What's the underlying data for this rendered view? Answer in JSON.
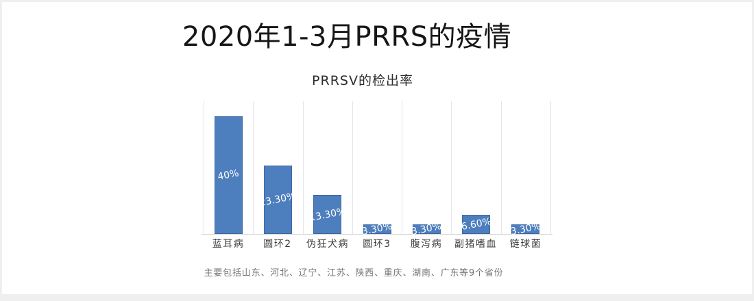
{
  "slide": {
    "title": "2020年1-3月PRRS的疫情",
    "footnote": "主要包括山东、河北、辽宁、江苏、陕西、重庆、湖南、广东等9个省份"
  },
  "chart_data": {
    "type": "bar",
    "title": "PRRSV的检出率",
    "categories": [
      "蓝耳病",
      "圆环2",
      "伪狂犬病",
      "圆环3",
      "腹泻病",
      "副猪嗜血",
      "链球菌"
    ],
    "values": [
      40,
      23.3,
      13.3,
      3.3,
      3.3,
      6.6,
      3.3
    ],
    "value_labels": [
      "40%",
      "23.30%",
      "13.30%",
      "3.30%",
      "3.30%",
      "6.60%",
      "3.30%"
    ],
    "xlabel": "",
    "ylabel": "",
    "ylim": [
      0,
      45
    ],
    "grid": "vertical-category-separators",
    "legend": "none",
    "value_label_position": "inside-center",
    "colors": {
      "bar_fill": "#4d7ebd",
      "bar_border": "#3a6298",
      "value_label": "#ffffff",
      "gridline": "#e4e4ea",
      "baseline": "#d6d6d6",
      "category_label": "#3c3c3c",
      "chart_title": "#2d2d2d",
      "slide_title": "#161616",
      "footnote": "#757575",
      "frame": "#efefef",
      "background": "#ffffff"
    }
  }
}
